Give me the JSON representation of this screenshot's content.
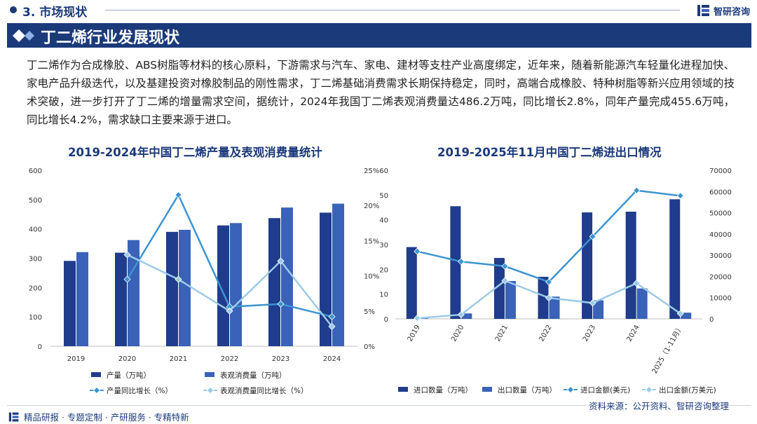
{
  "header": {
    "section": "3. 市场现状",
    "brand": "智研咨询"
  },
  "banner": {
    "title": "丁二烯行业发展现状"
  },
  "intro": "丁二烯作为合成橡胶、ABS树脂等材料的核心原料，下游需求与汽车、家电、建材等支柱产业高度绑定，近年来，随着新能源汽车轻量化进程加快、家电产品升级迭代，以及基建投资对橡胶制品的刚性需求，丁二烯基础消费需求长期保持稳定，同时，高端合成橡胶、特种树脂等新兴应用领域的技术突破，进一步打开了丁二烯的增量需求空间，据统计，2024年我国丁二烯表观消费量达486.2万吨，同比增长2.8%，同年产量完成455.6万吨，同比增长4.2%，需求缺口主要来源于进口。",
  "colors": {
    "dark": "#1b3a7a",
    "bar1": "#1f3d8c",
    "bar2": "#3a62b8",
    "line1": "#3c94cf",
    "line2": "#9ccbe8"
  },
  "chart_data": [
    {
      "type": "bar",
      "title": "2019-2024年中国丁二烯产量及表观消费量统计",
      "categories": [
        "2019",
        "2020",
        "2021",
        "2022",
        "2023",
        "2024"
      ],
      "ylim": [
        0,
        600
      ],
      "y_ticks": [
        "0",
        "100",
        "200",
        "300",
        "400",
        "500",
        "600"
      ],
      "y2lim": [
        0,
        25
      ],
      "y2_ticks": [
        "0%",
        "5%",
        "10%",
        "15%",
        "20%",
        "25%"
      ],
      "series": [
        {
          "name": "产量（万吨）",
          "kind": "bar",
          "values": [
            291,
            319,
            390,
            412,
            437,
            455.6
          ]
        },
        {
          "name": "表观消费量（万吨）",
          "kind": "bar",
          "values": [
            321,
            362,
            397,
            420,
            473,
            486.2
          ]
        }
      ],
      "line_series": [
        {
          "name": "产量同比增长（%）",
          "values": [
            9.5,
            21.5,
            5.6,
            6.0,
            4.2
          ]
        },
        {
          "name": "表观消费量同比增长（%）",
          "values": [
            13.0,
            9.5,
            5.0,
            12.1,
            2.8
          ]
        }
      ]
    },
    {
      "type": "bar",
      "title": "2019-2025年11月中国丁二烯进出口情况",
      "categories": [
        "2019",
        "2020",
        "2021",
        "2022",
        "2023",
        "2024",
        "2025（1-11月）"
      ],
      "ylim": [
        0,
        60
      ],
      "y_ticks": [
        "0",
        "10",
        "20",
        "30",
        "40",
        "50",
        "60"
      ],
      "y2lim": [
        0,
        70000
      ],
      "y2_ticks": [
        "0",
        "10000",
        "20000",
        "30000",
        "40000",
        "50000",
        "60000",
        "70000"
      ],
      "series": [
        {
          "name": "进口数量（万吨）",
          "kind": "bar",
          "values": [
            29,
            45.5,
            24.6,
            17,
            43,
            43.3,
            48.3
          ]
        },
        {
          "name": "出口数量（万吨）",
          "kind": "bar",
          "values": [
            0.5,
            2.2,
            15.3,
            9,
            7.5,
            12.3,
            2.5
          ]
        }
      ],
      "line_series": [
        {
          "name": "进口金额(美元)",
          "values": [
            31800,
            27000,
            24800,
            17400,
            38800,
            60500,
            58000
          ]
        },
        {
          "name": "出口金额(万美元)",
          "values": [
            300,
            2000,
            18000,
            9900,
            7500,
            16800,
            2500
          ]
        }
      ]
    }
  ],
  "footer": {
    "tagline": "精品研报 · 专题定制 · 产研服务 · 专精特新",
    "source": "资料来源：公开资料、智研咨询整理"
  }
}
